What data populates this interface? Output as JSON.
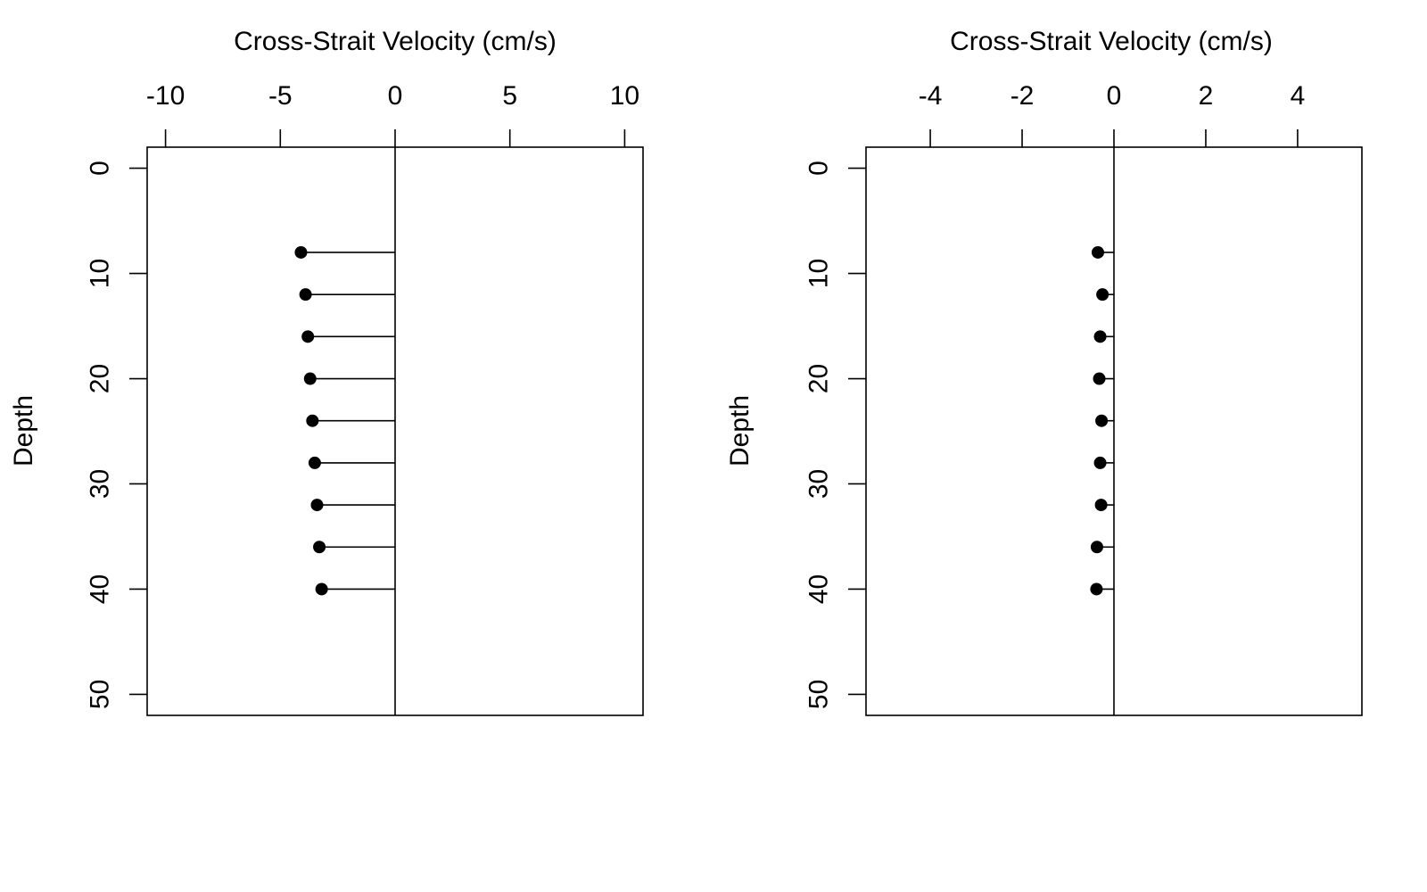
{
  "chart_data": [
    {
      "type": "scatter",
      "style": "lollipop-horizontal",
      "title": "",
      "xlabel": "Cross-Strait Velocity (cm/s)",
      "ylabel": "Depth",
      "x_axis_position": "top",
      "y_reversed": true,
      "xlim": [
        -10.8,
        10.8
      ],
      "ylim": [
        52,
        -2
      ],
      "xticks": [
        -10,
        -5,
        0,
        5,
        10
      ],
      "xtick_labels": [
        "-10",
        "-5",
        "0",
        "5",
        "10"
      ],
      "yticks": [
        0,
        10,
        20,
        30,
        40,
        50
      ],
      "ytick_labels": [
        "0",
        "10",
        "20",
        "30",
        "40",
        "50"
      ],
      "reference_line_x": 0,
      "grid": false,
      "legend": "none",
      "points": [
        {
          "depth": 8,
          "velocity": -4.1
        },
        {
          "depth": 12,
          "velocity": -3.9
        },
        {
          "depth": 16,
          "velocity": -3.8
        },
        {
          "depth": 20,
          "velocity": -3.7
        },
        {
          "depth": 24,
          "velocity": -3.6
        },
        {
          "depth": 28,
          "velocity": -3.5
        },
        {
          "depth": 32,
          "velocity": -3.4
        },
        {
          "depth": 36,
          "velocity": -3.3
        },
        {
          "depth": 40,
          "velocity": -3.2
        }
      ],
      "color": "#000000"
    },
    {
      "type": "scatter",
      "style": "lollipop-horizontal",
      "title": "",
      "xlabel": "Cross-Strait Velocity (cm/s)",
      "ylabel": "Depth",
      "x_axis_position": "top",
      "y_reversed": true,
      "xlim": [
        -5.4,
        5.4
      ],
      "ylim": [
        52,
        -2
      ],
      "xticks": [
        -4,
        -2,
        0,
        2,
        4
      ],
      "xtick_labels": [
        "-4",
        "-2",
        "0",
        "2",
        "4"
      ],
      "yticks": [
        0,
        10,
        20,
        30,
        40,
        50
      ],
      "ytick_labels": [
        "0",
        "10",
        "20",
        "30",
        "40",
        "50"
      ],
      "reference_line_x": 0,
      "grid": false,
      "legend": "none",
      "points": [
        {
          "depth": 8,
          "velocity": -0.35
        },
        {
          "depth": 12,
          "velocity": -0.25
        },
        {
          "depth": 16,
          "velocity": -0.3
        },
        {
          "depth": 20,
          "velocity": -0.32
        },
        {
          "depth": 24,
          "velocity": -0.27
        },
        {
          "depth": 28,
          "velocity": -0.3
        },
        {
          "depth": 32,
          "velocity": -0.28
        },
        {
          "depth": 36,
          "velocity": -0.37
        },
        {
          "depth": 40,
          "velocity": -0.38
        }
      ],
      "color": "#000000"
    }
  ]
}
